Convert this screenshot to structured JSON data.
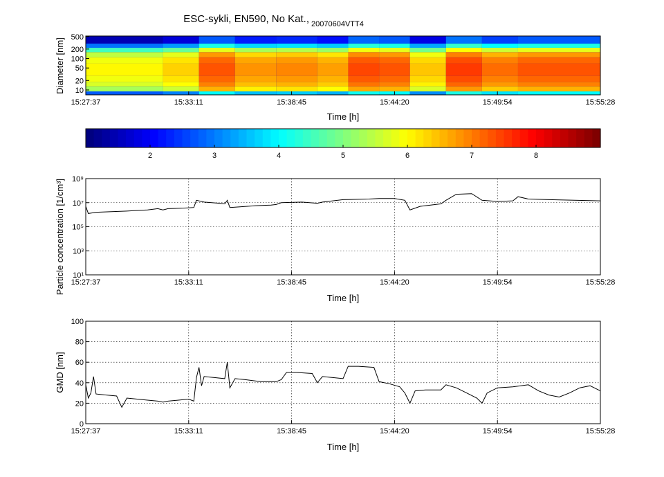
{
  "figure": {
    "title_main": "ESC-sykli, EN590, No Kat.,",
    "title_sub": "20070604VTT4"
  },
  "chart_data": [
    {
      "type": "heatmap",
      "id": "size-distribution",
      "xlabel": "Time [h]",
      "ylabel": "Diameter [nm]",
      "x_ticks": [
        "15:27:37",
        "15:33:11",
        "15:38:45",
        "15:44:20",
        "15:49:54",
        "15:55:28"
      ],
      "y_scale": "log",
      "y_ticks": [
        10,
        20,
        50,
        100,
        200,
        500
      ],
      "ylim": [
        7,
        520
      ],
      "segments": [
        {
          "t0": 0.0,
          "t1": 0.15,
          "level": 5.9
        },
        {
          "t0": 0.15,
          "t1": 0.22,
          "level": 6.2
        },
        {
          "t0": 0.22,
          "t1": 0.29,
          "level": 7.2
        },
        {
          "t0": 0.29,
          "t1": 0.37,
          "level": 6.7
        },
        {
          "t0": 0.37,
          "t1": 0.45,
          "level": 6.8
        },
        {
          "t0": 0.45,
          "t1": 0.51,
          "level": 6.6
        },
        {
          "t0": 0.51,
          "t1": 0.57,
          "level": 7.3
        },
        {
          "t0": 0.57,
          "t1": 0.63,
          "level": 7.2
        },
        {
          "t0": 0.63,
          "t1": 0.7,
          "level": 6.3
        },
        {
          "t0": 0.7,
          "t1": 0.77,
          "level": 7.4
        },
        {
          "t0": 0.77,
          "t1": 0.84,
          "level": 7.0
        },
        {
          "t0": 0.84,
          "t1": 1.0,
          "level": 7.2
        }
      ],
      "colorbar": {
        "colormap": "jet",
        "range": [
          1,
          9
        ],
        "ticks": [
          2,
          3,
          4,
          5,
          6,
          7,
          8
        ]
      }
    },
    {
      "type": "line",
      "id": "particle-concentration",
      "xlabel": "Time [h]",
      "ylabel": "Particle concentration [1/cm³]",
      "x_ticks": [
        "15:27:37",
        "15:33:11",
        "15:38:45",
        "15:44:20",
        "15:49:54",
        "15:55:28"
      ],
      "y_scale": "log",
      "y_ticks": [
        "10¹",
        "10³",
        "10⁵",
        "10⁷",
        "10⁹"
      ],
      "ylim_exp": [
        1,
        9
      ],
      "grid": true,
      "series": [
        {
          "points": [
            [
              0.0,
              6.7
            ],
            [
              0.005,
              6.1
            ],
            [
              0.02,
              6.2
            ],
            [
              0.05,
              6.25
            ],
            [
              0.08,
              6.3
            ],
            [
              0.1,
              6.35
            ],
            [
              0.12,
              6.4
            ],
            [
              0.14,
              6.5
            ],
            [
              0.15,
              6.4
            ],
            [
              0.16,
              6.5
            ],
            [
              0.19,
              6.55
            ],
            [
              0.21,
              6.6
            ],
            [
              0.215,
              7.2
            ],
            [
              0.23,
              7.05
            ],
            [
              0.26,
              6.95
            ],
            [
              0.27,
              6.9
            ],
            [
              0.275,
              7.2
            ],
            [
              0.28,
              6.6
            ],
            [
              0.3,
              6.65
            ],
            [
              0.33,
              6.75
            ],
            [
              0.36,
              6.8
            ],
            [
              0.37,
              6.85
            ],
            [
              0.38,
              7.0
            ],
            [
              0.42,
              7.05
            ],
            [
              0.45,
              6.95
            ],
            [
              0.46,
              7.05
            ],
            [
              0.48,
              7.15
            ],
            [
              0.5,
              7.25
            ],
            [
              0.55,
              7.3
            ],
            [
              0.57,
              7.35
            ],
            [
              0.6,
              7.35
            ],
            [
              0.62,
              7.2
            ],
            [
              0.63,
              6.4
            ],
            [
              0.65,
              6.7
            ],
            [
              0.67,
              6.8
            ],
            [
              0.69,
              6.9
            ],
            [
              0.7,
              7.2
            ],
            [
              0.72,
              7.7
            ],
            [
              0.75,
              7.75
            ],
            [
              0.77,
              7.2
            ],
            [
              0.8,
              7.1
            ],
            [
              0.83,
              7.15
            ],
            [
              0.84,
              7.5
            ],
            [
              0.86,
              7.3
            ],
            [
              0.9,
              7.25
            ],
            [
              0.95,
              7.2
            ],
            [
              1.0,
              7.15
            ]
          ]
        }
      ]
    },
    {
      "type": "line",
      "id": "gmd",
      "xlabel": "Time [h]",
      "ylabel": "GMD [nm]",
      "x_ticks": [
        "15:27:37",
        "15:33:11",
        "15:38:45",
        "15:44:20",
        "15:49:54",
        "15:55:28"
      ],
      "y_ticks": [
        0,
        20,
        40,
        60,
        80,
        100
      ],
      "ylim": [
        0,
        100
      ],
      "grid": true,
      "series": [
        {
          "points": [
            [
              0.0,
              38
            ],
            [
              0.005,
              25
            ],
            [
              0.01,
              30
            ],
            [
              0.015,
              46
            ],
            [
              0.02,
              29
            ],
            [
              0.04,
              28
            ],
            [
              0.06,
              27
            ],
            [
              0.07,
              16
            ],
            [
              0.08,
              25
            ],
            [
              0.1,
              24
            ],
            [
              0.12,
              23
            ],
            [
              0.14,
              22
            ],
            [
              0.15,
              21
            ],
            [
              0.16,
              22
            ],
            [
              0.18,
              23
            ],
            [
              0.2,
              24
            ],
            [
              0.21,
              22
            ],
            [
              0.215,
              45
            ],
            [
              0.22,
              55
            ],
            [
              0.225,
              37
            ],
            [
              0.23,
              46
            ],
            [
              0.25,
              45
            ],
            [
              0.27,
              44
            ],
            [
              0.275,
              60
            ],
            [
              0.28,
              35
            ],
            [
              0.29,
              44
            ],
            [
              0.31,
              43
            ],
            [
              0.34,
              41
            ],
            [
              0.37,
              41
            ],
            [
              0.38,
              43
            ],
            [
              0.39,
              50
            ],
            [
              0.41,
              50
            ],
            [
              0.44,
              49
            ],
            [
              0.45,
              40
            ],
            [
              0.46,
              46
            ],
            [
              0.48,
              45
            ],
            [
              0.5,
              44
            ],
            [
              0.51,
              56
            ],
            [
              0.53,
              56
            ],
            [
              0.56,
              55
            ],
            [
              0.57,
              41
            ],
            [
              0.59,
              39
            ],
            [
              0.61,
              36
            ],
            [
              0.62,
              30
            ],
            [
              0.63,
              20
            ],
            [
              0.64,
              32
            ],
            [
              0.66,
              33
            ],
            [
              0.69,
              33
            ],
            [
              0.7,
              38
            ],
            [
              0.72,
              35
            ],
            [
              0.74,
              30
            ],
            [
              0.76,
              25
            ],
            [
              0.77,
              20
            ],
            [
              0.78,
              30
            ],
            [
              0.8,
              35
            ],
            [
              0.83,
              36
            ],
            [
              0.86,
              38
            ],
            [
              0.88,
              32
            ],
            [
              0.9,
              28
            ],
            [
              0.92,
              26
            ],
            [
              0.94,
              30
            ],
            [
              0.96,
              35
            ],
            [
              0.98,
              37
            ],
            [
              1.0,
              32
            ]
          ]
        }
      ]
    }
  ]
}
